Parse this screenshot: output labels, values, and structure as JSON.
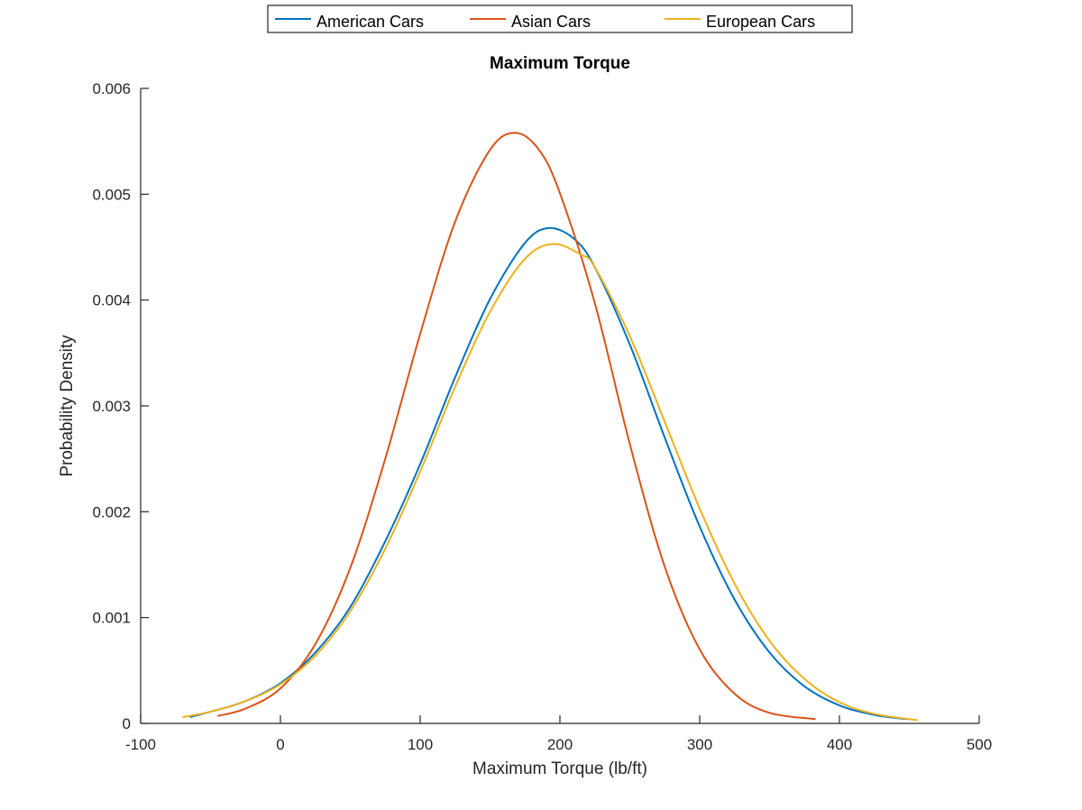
{
  "chart_data": {
    "type": "line",
    "title": "Maximum Torque",
    "xlabel": "Maximum Torque (lb/ft)",
    "ylabel": "Probability Density",
    "xlim": [
      -100,
      500
    ],
    "ylim": [
      0,
      0.006
    ],
    "x_ticks": [
      "-100",
      "0",
      "100",
      "200",
      "300",
      "400",
      "500"
    ],
    "y_ticks": [
      "0",
      "0.001",
      "0.002",
      "0.003",
      "0.004",
      "0.005",
      "0.006"
    ],
    "legend_position": "top-center",
    "grid": false,
    "series": [
      {
        "name": "American Cars",
        "color": "#0072BD",
        "x": [
          -65,
          -50,
          -25,
          0,
          25,
          50,
          75,
          100,
          125,
          150,
          175,
          192,
          210,
          225,
          250,
          275,
          300,
          325,
          350,
          375,
          400,
          425,
          448
        ],
        "y": [
          6e-05,
          0.00011,
          0.00021,
          0.00038,
          0.00067,
          0.0011,
          0.00172,
          0.00245,
          0.00327,
          0.00401,
          0.00454,
          0.00468,
          0.00458,
          0.00431,
          0.00358,
          0.0027,
          0.00186,
          0.00117,
          0.00067,
          0.00035,
          0.00017,
          8e-05,
          4e-05
        ]
      },
      {
        "name": "Asian Cars",
        "color": "#D95319",
        "x": [
          -45,
          -25,
          0,
          25,
          50,
          75,
          100,
          125,
          150,
          168,
          185,
          200,
          225,
          250,
          275,
          300,
          325,
          350,
          383
        ],
        "y": [
          7e-05,
          0.00014,
          0.00033,
          0.00075,
          0.00147,
          0.0025,
          0.00368,
          0.00474,
          0.00542,
          0.00558,
          0.00542,
          0.00501,
          0.00397,
          0.00264,
          0.00148,
          0.0007,
          0.00028,
          0.0001,
          4e-05
        ]
      },
      {
        "name": "European Cars",
        "color": "#EDB120",
        "x": [
          -70,
          -50,
          -25,
          0,
          25,
          50,
          75,
          100,
          125,
          150,
          175,
          195,
          215,
          225,
          250,
          275,
          300,
          325,
          350,
          375,
          400,
          425,
          456
        ],
        "y": [
          6e-05,
          0.00011,
          0.00021,
          0.00037,
          0.00064,
          0.00106,
          0.00165,
          0.00238,
          0.00318,
          0.00389,
          0.00439,
          0.00453,
          0.00443,
          0.00431,
          0.00366,
          0.00285,
          0.00203,
          0.00132,
          0.00078,
          0.00042,
          0.0002,
          9e-05,
          3e-05
        ]
      }
    ]
  }
}
